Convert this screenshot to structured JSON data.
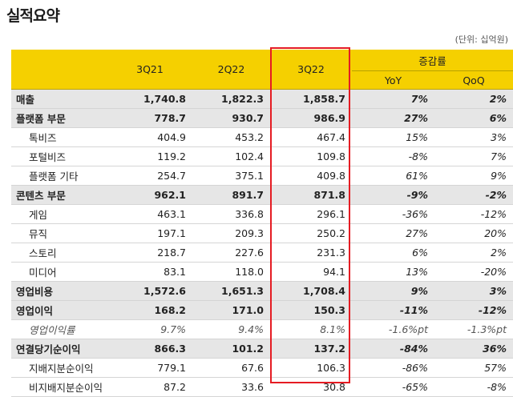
{
  "title": "실적요약",
  "unit_note": "(단위: 십억원)",
  "header": {
    "col1": "3Q21",
    "col2": "2Q22",
    "col3": "3Q22",
    "change_group": "증감률",
    "yoy": "YoY",
    "qoq": "QoQ"
  },
  "rows": [
    {
      "label": "매출",
      "q321": "1,740.8",
      "q222": "1,822.3",
      "q322": "1,858.7",
      "yoy": "7%",
      "qoq": "2%"
    },
    {
      "label": "플랫폼 부문",
      "q321": "778.7",
      "q222": "930.7",
      "q322": "986.9",
      "yoy": "27%",
      "qoq": "6%"
    },
    {
      "label": "톡비즈",
      "q321": "404.9",
      "q222": "453.2",
      "q322": "467.4",
      "yoy": "15%",
      "qoq": "3%"
    },
    {
      "label": "포털비즈",
      "q321": "119.2",
      "q222": "102.4",
      "q322": "109.8",
      "yoy": "-8%",
      "qoq": "7%"
    },
    {
      "label": "플랫폼 기타",
      "q321": "254.7",
      "q222": "375.1",
      "q322": "409.8",
      "yoy": "61%",
      "qoq": "9%"
    },
    {
      "label": "콘텐츠 부문",
      "q321": "962.1",
      "q222": "891.7",
      "q322": "871.8",
      "yoy": "-9%",
      "qoq": "-2%"
    },
    {
      "label": "게임",
      "q321": "463.1",
      "q222": "336.8",
      "q322": "296.1",
      "yoy": "-36%",
      "qoq": "-12%"
    },
    {
      "label": "뮤직",
      "q321": "197.1",
      "q222": "209.3",
      "q322": "250.2",
      "yoy": "27%",
      "qoq": "20%"
    },
    {
      "label": "스토리",
      "q321": "218.7",
      "q222": "227.6",
      "q322": "231.3",
      "yoy": "6%",
      "qoq": "2%"
    },
    {
      "label": "미디어",
      "q321": "83.1",
      "q222": "118.0",
      "q322": "94.1",
      "yoy": "13%",
      "qoq": "-20%"
    },
    {
      "label": "영업비용",
      "q321": "1,572.6",
      "q222": "1,651.3",
      "q322": "1,708.4",
      "yoy": "9%",
      "qoq": "3%"
    },
    {
      "label": "영업이익",
      "q321": "168.2",
      "q222": "171.0",
      "q322": "150.3",
      "yoy": "-11%",
      "qoq": "-12%"
    },
    {
      "label": "영업이익률",
      "q321": "9.7%",
      "q222": "9.4%",
      "q322": "8.1%",
      "yoy": "-1.6%pt",
      "qoq": "-1.3%pt"
    },
    {
      "label": "연결당기순이익",
      "q321": "866.3",
      "q222": "101.2",
      "q322": "137.2",
      "yoy": "-84%",
      "qoq": "36%"
    },
    {
      "label": "지배지분순이익",
      "q321": "779.1",
      "q222": "67.6",
      "q322": "106.3",
      "yoy": "-86%",
      "qoq": "57%"
    },
    {
      "label": "비지배지분순이익",
      "q321": "87.2",
      "q222": "33.6",
      "q322": "30.8",
      "yoy": "-65%",
      "qoq": "-8%"
    }
  ]
}
